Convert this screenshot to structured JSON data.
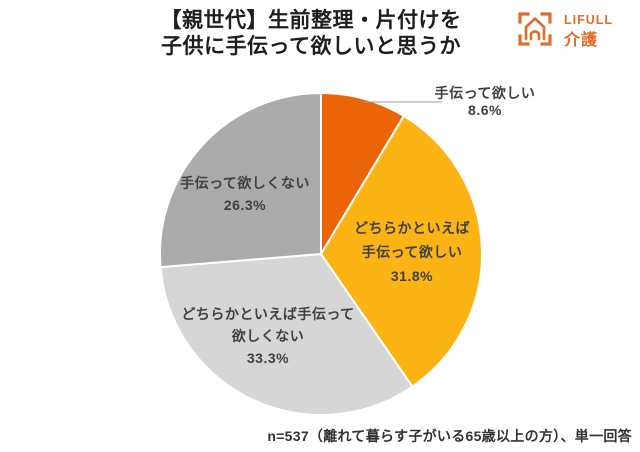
{
  "header": {
    "title_line1": "【親世代】生前整理・片付けを",
    "title_line2": "子供に手伝って欲しいと思うか"
  },
  "logo": {
    "brand": "LIFULL",
    "service": "介護",
    "color": "#DF6E2D"
  },
  "chart_data": {
    "type": "pie",
    "title": "【親世代】生前整理・片付けを子供に手伝って欲しいと思うか",
    "unit": "%",
    "start_angle_deg": 0,
    "direction": "clockwise",
    "slices": [
      {
        "label": "手伝って欲しい",
        "value": 8.6,
        "display_pct": "8.6%",
        "color": "#EB6408",
        "label_position": "outside-top-right"
      },
      {
        "label": "どちらかといえば手伝って欲しい",
        "value": 31.8,
        "display_pct": "31.8%",
        "color": "#FCB415",
        "label_position": "inside"
      },
      {
        "label": "どちらかといえば手伝って欲しくない",
        "value": 33.3,
        "display_pct": "33.3%",
        "color": "#D6D6D6",
        "label_position": "inside"
      },
      {
        "label": "手伝って欲しくない",
        "value": 26.3,
        "display_pct": "26.3%",
        "color": "#ABABAB",
        "label_position": "inside"
      }
    ],
    "note": "n=537（離れて暮らす子がいる65歳以上の方）、単一回答"
  },
  "labels": {
    "slice0": {
      "line1": "手伝って欲しい",
      "line2": "8.6%"
    },
    "slice1": {
      "line1": "どちらかといえば",
      "line2": "手伝って欲しい",
      "line3": "31.8%"
    },
    "slice2": {
      "line1": "どちらかといえば手伝って",
      "line2": "欲しくない",
      "line3": "33.3%"
    },
    "slice3": {
      "line1": "手伝って欲しくない",
      "line2": "26.3%"
    }
  },
  "footer": {
    "note": "n=537（離れて暮らす子がいる65歳以上の方）、単一回答"
  }
}
